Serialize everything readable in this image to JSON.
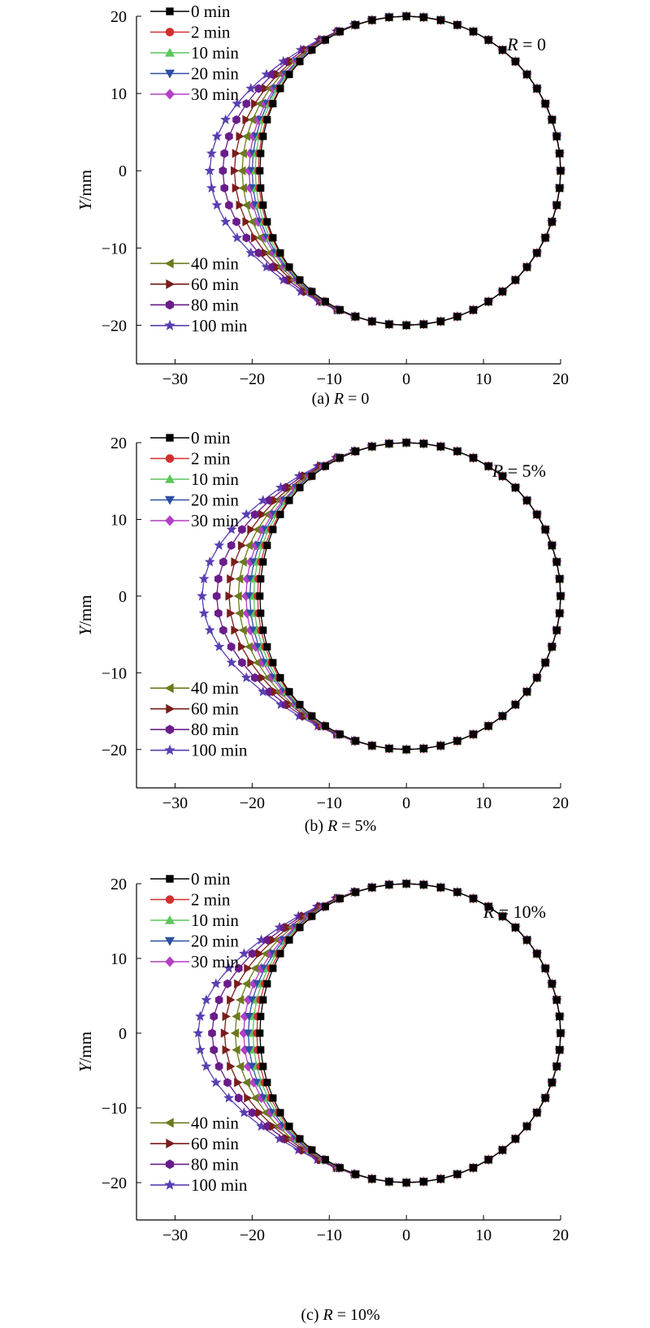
{
  "chart_data": [
    {
      "type": "line",
      "caption_label": "(a)",
      "caption_var": "R",
      "caption_eq": " = 0",
      "annotation_var": "R",
      "annotation_eq": " = 0",
      "xlabel": "",
      "ylabel_var": "Y",
      "ylabel_unit": "/mm",
      "xlim": [
        -35,
        20
      ],
      "ylim": [
        -25,
        20
      ],
      "xticks": [
        "−30",
        "−20",
        "−10",
        "0",
        "10",
        "20"
      ],
      "yticks": [
        "20",
        "10",
        "0",
        "−10",
        "−20"
      ],
      "grid": false,
      "legend_upper": [
        "0 min",
        "2 min",
        "10 min",
        "20 min",
        "30 min"
      ],
      "legend_lower": [
        "40 min",
        "60 min",
        "80 min",
        "100 min"
      ],
      "series": [
        {
          "name": "0 min",
          "color": "#000000",
          "marker": "square",
          "left_x": -19.0
        },
        {
          "name": "2 min",
          "color": "#d32f2f",
          "marker": "circle",
          "left_x": -19.2
        },
        {
          "name": "10 min",
          "color": "#5cc65c",
          "marker": "triangle-up",
          "left_x": -19.6
        },
        {
          "name": "20 min",
          "color": "#2c4fa3",
          "marker": "triangle-down",
          "left_x": -20.0
        },
        {
          "name": "30 min",
          "color": "#b23fc4",
          "marker": "diamond",
          "left_x": -20.4
        },
        {
          "name": "40 min",
          "color": "#6b7a1e",
          "marker": "triangle-left",
          "left_x": -21.3
        },
        {
          "name": "60 min",
          "color": "#7a1c1c",
          "marker": "triangle-right",
          "left_x": -22.3
        },
        {
          "name": "80 min",
          "color": "#6a1d8a",
          "marker": "hexagon",
          "left_x": -23.8
        },
        {
          "name": "100 min",
          "color": "#5a3fb0",
          "marker": "star",
          "left_x": -25.5
        }
      ]
    },
    {
      "type": "line",
      "caption_label": "(b)",
      "caption_var": "R",
      "caption_eq": " = 5%",
      "annotation_var": "R",
      "annotation_eq": " = 5%",
      "xlabel": "",
      "ylabel_var": "Y",
      "ylabel_unit": "/mm",
      "xlim": [
        -35,
        20
      ],
      "ylim": [
        -25,
        20
      ],
      "xticks": [
        "−30",
        "−20",
        "−10",
        "0",
        "10",
        "20"
      ],
      "yticks": [
        "20",
        "10",
        "0",
        "−10",
        "−20"
      ],
      "grid": false,
      "legend_upper": [
        "0 min",
        "2 min",
        "10 min",
        "20 min",
        "30 min"
      ],
      "legend_lower": [
        "40 min",
        "60 min",
        "80 min",
        "100 min"
      ],
      "series": [
        {
          "name": "0 min",
          "color": "#000000",
          "marker": "square",
          "left_x": -19.0
        },
        {
          "name": "2 min",
          "color": "#d32f2f",
          "marker": "circle",
          "left_x": -19.3
        },
        {
          "name": "10 min",
          "color": "#5cc65c",
          "marker": "triangle-up",
          "left_x": -19.8
        },
        {
          "name": "20 min",
          "color": "#2c4fa3",
          "marker": "triangle-down",
          "left_x": -20.3
        },
        {
          "name": "30 min",
          "color": "#b23fc4",
          "marker": "diamond",
          "left_x": -20.8
        },
        {
          "name": "40 min",
          "color": "#6b7a1e",
          "marker": "triangle-left",
          "left_x": -21.8
        },
        {
          "name": "60 min",
          "color": "#7a1c1c",
          "marker": "triangle-right",
          "left_x": -23.0
        },
        {
          "name": "80 min",
          "color": "#6a1d8a",
          "marker": "hexagon",
          "left_x": -24.6
        },
        {
          "name": "100 min",
          "color": "#5a3fb0",
          "marker": "star",
          "left_x": -26.5
        }
      ]
    },
    {
      "type": "line",
      "caption_label": "(c)",
      "caption_var": "R",
      "caption_eq": " = 10%",
      "annotation_var": "R",
      "annotation_eq": " = 10%",
      "xlabel": "",
      "ylabel_var": "Y",
      "ylabel_unit": "/mm",
      "xlim": [
        -35,
        20
      ],
      "ylim": [
        -25,
        20
      ],
      "xticks": [
        "−30",
        "−20",
        "−10",
        "0",
        "10",
        "20"
      ],
      "yticks": [
        "20",
        "10",
        "0",
        "−10",
        "−20"
      ],
      "grid": false,
      "legend_upper": [
        "0 min",
        "2 min",
        "10 min",
        "20 min",
        "30 min"
      ],
      "legend_lower": [
        "40 min",
        "60 min",
        "80 min",
        "100 min"
      ],
      "series": [
        {
          "name": "0 min",
          "color": "#000000",
          "marker": "square",
          "left_x": -19.0
        },
        {
          "name": "2 min",
          "color": "#d32f2f",
          "marker": "circle",
          "left_x": -19.4
        },
        {
          "name": "10 min",
          "color": "#5cc65c",
          "marker": "triangle-up",
          "left_x": -19.9
        },
        {
          "name": "20 min",
          "color": "#2c4fa3",
          "marker": "triangle-down",
          "left_x": -20.5
        },
        {
          "name": "30 min",
          "color": "#b23fc4",
          "marker": "diamond",
          "left_x": -21.1
        },
        {
          "name": "40 min",
          "color": "#6b7a1e",
          "marker": "triangle-left",
          "left_x": -22.2
        },
        {
          "name": "60 min",
          "color": "#7a1c1c",
          "marker": "triangle-right",
          "left_x": -23.6
        },
        {
          "name": "80 min",
          "color": "#6a1d8a",
          "marker": "hexagon",
          "left_x": -25.2
        },
        {
          "name": "100 min",
          "color": "#5a3fb0",
          "marker": "star",
          "left_x": -27.0
        }
      ],
      "circle": {
        "center": [
          0,
          0
        ],
        "radius": 20
      }
    }
  ]
}
